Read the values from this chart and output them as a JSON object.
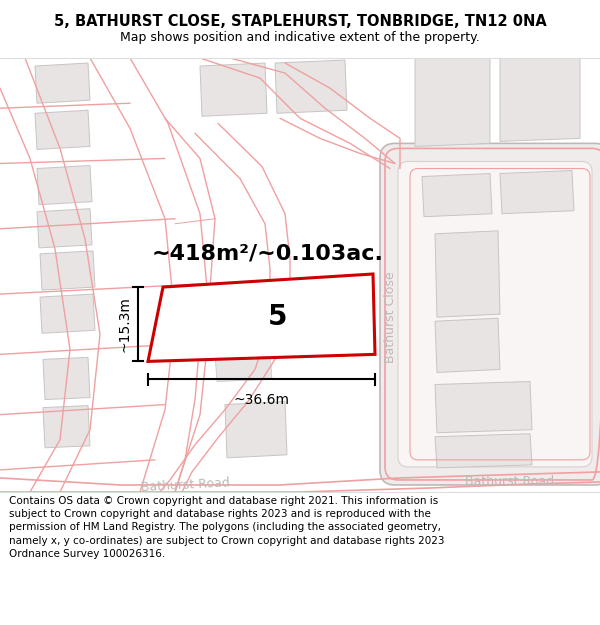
{
  "title_line1": "5, BATHURST CLOSE, STAPLEHURST, TONBRIDGE, TN12 0NA",
  "title_line2": "Map shows position and indicative extent of the property.",
  "area_label": "~418m²/~0.103ac.",
  "plot_number": "5",
  "dim_width": "~36.6m",
  "dim_height": "~15.3m",
  "footer_text": "Contains OS data © Crown copyright and database right 2021. This information is subject to Crown copyright and database rights 2023 and is reproduced with the permission of HM Land Registry. The polygons (including the associated geometry, namely x, y co-ordinates) are subject to Crown copyright and database rights 2023 Ordnance Survey 100026316.",
  "map_bg": "#f9f6f6",
  "road_line_color": "#f0a0a0",
  "road_fill_color": "#ffffff",
  "building_fill": "#e8e4e4",
  "building_edge": "#c8c4c4",
  "highlight_color": "#cc0000",
  "street_label_color": "#c0b8b8",
  "title_bg": "#ffffff",
  "footer_bg": "#ffffff",
  "title_fontsize": 10.5,
  "subtitle_fontsize": 9,
  "area_fontsize": 16,
  "plot_num_fontsize": 20,
  "dim_fontsize": 10,
  "street_fontsize": 9,
  "footer_fontsize": 7.5
}
